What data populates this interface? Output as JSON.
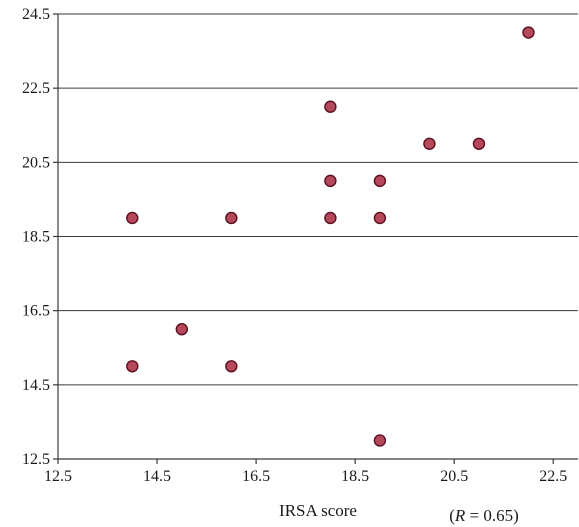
{
  "chart_data": {
    "type": "scatter",
    "xlabel": "IRSA score",
    "ylabel": "",
    "annotation": "(R = 0.65)",
    "annotation_parts": {
      "open": "(",
      "italic": "R",
      "rest": " = 0.65)"
    },
    "xlim": [
      12.5,
      23.0
    ],
    "ylim": [
      12.5,
      24.5
    ],
    "xticks": [
      "12.5",
      "14.5",
      "16.5",
      "18.5",
      "20.5",
      "22.5"
    ],
    "yticks": [
      "12.5",
      "14.5",
      "16.5",
      "18.5",
      "20.5",
      "22.5",
      "24.5"
    ],
    "grid": "horizontal",
    "point_color": "#b5495b",
    "points": [
      {
        "x": 14,
        "y": 19
      },
      {
        "x": 14,
        "y": 15
      },
      {
        "x": 15,
        "y": 16
      },
      {
        "x": 16,
        "y": 19
      },
      {
        "x": 16,
        "y": 15
      },
      {
        "x": 18,
        "y": 22
      },
      {
        "x": 18,
        "y": 20
      },
      {
        "x": 18,
        "y": 19
      },
      {
        "x": 19,
        "y": 20
      },
      {
        "x": 19,
        "y": 19
      },
      {
        "x": 19,
        "y": 13
      },
      {
        "x": 20,
        "y": 21
      },
      {
        "x": 21,
        "y": 21
      },
      {
        "x": 22,
        "y": 24
      }
    ]
  }
}
